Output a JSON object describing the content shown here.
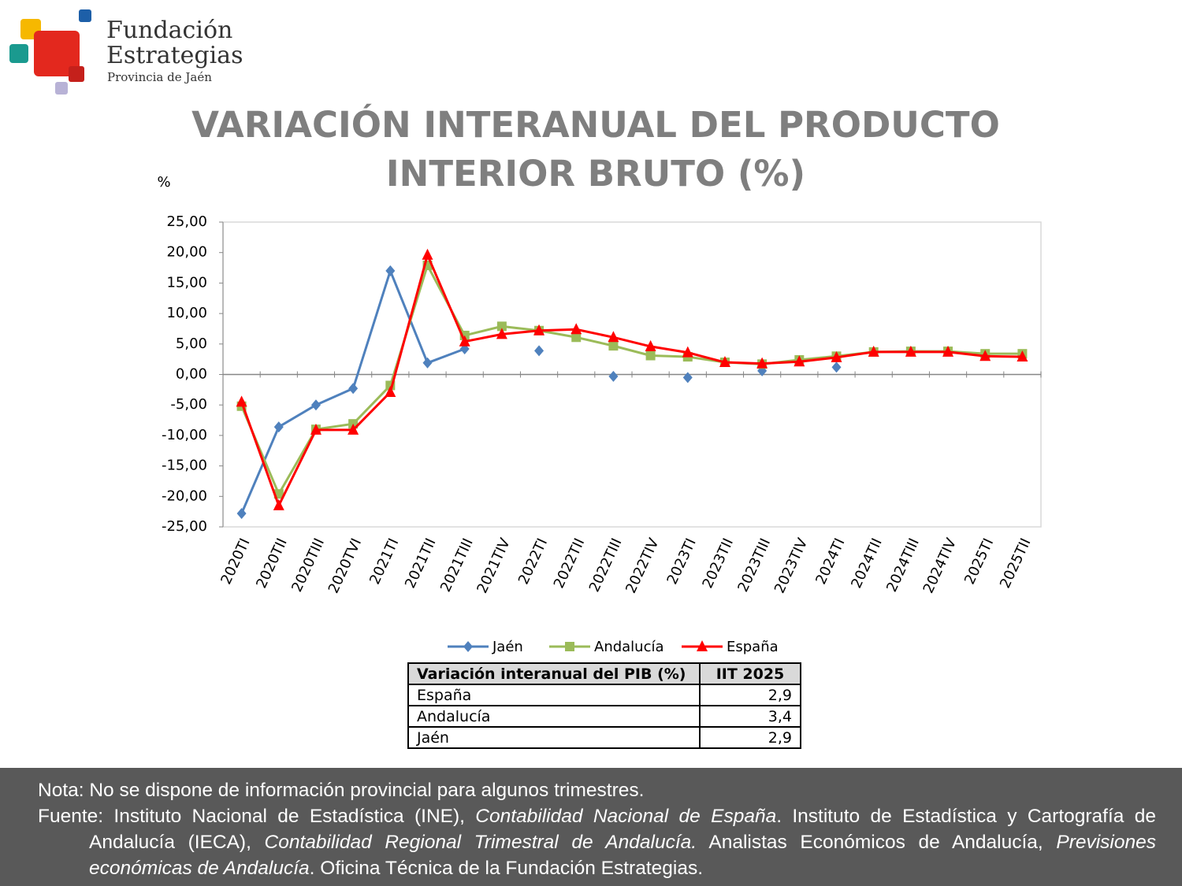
{
  "logo": {
    "lines": [
      "Fundación",
      "Estrategias",
      "Provincia de Jaén"
    ]
  },
  "chart_data": {
    "type": "line",
    "title": "VARIACIÓN INTERANUAL DEL PRODUCTO INTERIOR BRUTO (%)",
    "y_label": "%",
    "categories": [
      "2020TI",
      "2020TII",
      "2020TIII",
      "2020TVI",
      "2021TI",
      "2021TII",
      "2021TIII",
      "2021TIV",
      "2022TI",
      "2022TII",
      "2022TIII",
      "2022TIV",
      "2023TI",
      "2023TII",
      "2023TIII",
      "2023TIV",
      "2024TI",
      "2024TII",
      "2024TIII",
      "2024TIV",
      "2025TI",
      "2025TII"
    ],
    "series": [
      {
        "name": "Jaén",
        "color": "#4f81bd",
        "marker": "diamond",
        "values": [
          -22.8,
          -8.6,
          -5.0,
          -2.3,
          17.0,
          1.9,
          4.2,
          null,
          3.9,
          null,
          -0.3,
          null,
          -0.5,
          null,
          0.6,
          null,
          1.2,
          null,
          null,
          null,
          null,
          null
        ]
      },
      {
        "name": "Andalucía",
        "color": "#9bbb59",
        "marker": "square",
        "values": [
          -5.2,
          -19.6,
          -9.0,
          -8.1,
          -1.8,
          17.9,
          6.4,
          7.9,
          7.2,
          6.1,
          4.7,
          3.1,
          2.9,
          2.0,
          1.7,
          2.4,
          3.0,
          3.7,
          3.8,
          3.8,
          3.4,
          3.4
        ]
      },
      {
        "name": "España",
        "color": "#ff0000",
        "marker": "triangle",
        "values": [
          -4.5,
          -21.5,
          -9.1,
          -9.1,
          -2.9,
          19.6,
          5.4,
          6.6,
          7.2,
          7.4,
          6.1,
          4.6,
          3.6,
          2.0,
          1.8,
          2.1,
          2.8,
          3.7,
          3.7,
          3.7,
          3.0,
          2.9
        ]
      }
    ],
    "ylim": [
      -25,
      25
    ],
    "yticks": [
      {
        "value": -25,
        "label": "-25,00"
      },
      {
        "value": -20,
        "label": "-20,00"
      },
      {
        "value": -15,
        "label": "-15,00"
      },
      {
        "value": -10,
        "label": "-10,00"
      },
      {
        "value": -5,
        "label": "-5,00"
      },
      {
        "value": 0,
        "label": "0,00"
      },
      {
        "value": 5,
        "label": "5,00"
      },
      {
        "value": 10,
        "label": "10,00"
      },
      {
        "value": 15,
        "label": "15,00"
      },
      {
        "value": 20,
        "label": "20,00"
      },
      {
        "value": 25,
        "label": "25,00"
      }
    ],
    "grid": false,
    "legend": "bottom"
  },
  "table": {
    "header": [
      "Variación interanual del PIB (%)",
      "IIT 2025"
    ],
    "rows": [
      [
        "España",
        "2,9"
      ],
      [
        "Andalucía",
        "3,4"
      ],
      [
        "Jaén",
        "2,9"
      ]
    ]
  },
  "footer": {
    "note": "Nota: No se dispone de información provincial para algunos trimestres.",
    "source": [
      {
        "text": "Fuente: Instituto Nacional de Estadística (INE), ",
        "italic": false
      },
      {
        "text": "Contabilidad Nacional de España",
        "italic": true
      },
      {
        "text": ". Instituto de Estadística y Cartografía de Andalucía (IECA), ",
        "italic": false
      },
      {
        "text": "Contabilidad Regional Trimestral de Andalucía.",
        "italic": true
      },
      {
        "text": " Analistas Económicos de Andalucía, ",
        "italic": false
      },
      {
        "text": "Previsiones económicas de Andalucía",
        "italic": true
      },
      {
        "text": ". Oficina Técnica de la Fundación Estrategias.",
        "italic": false
      }
    ]
  }
}
